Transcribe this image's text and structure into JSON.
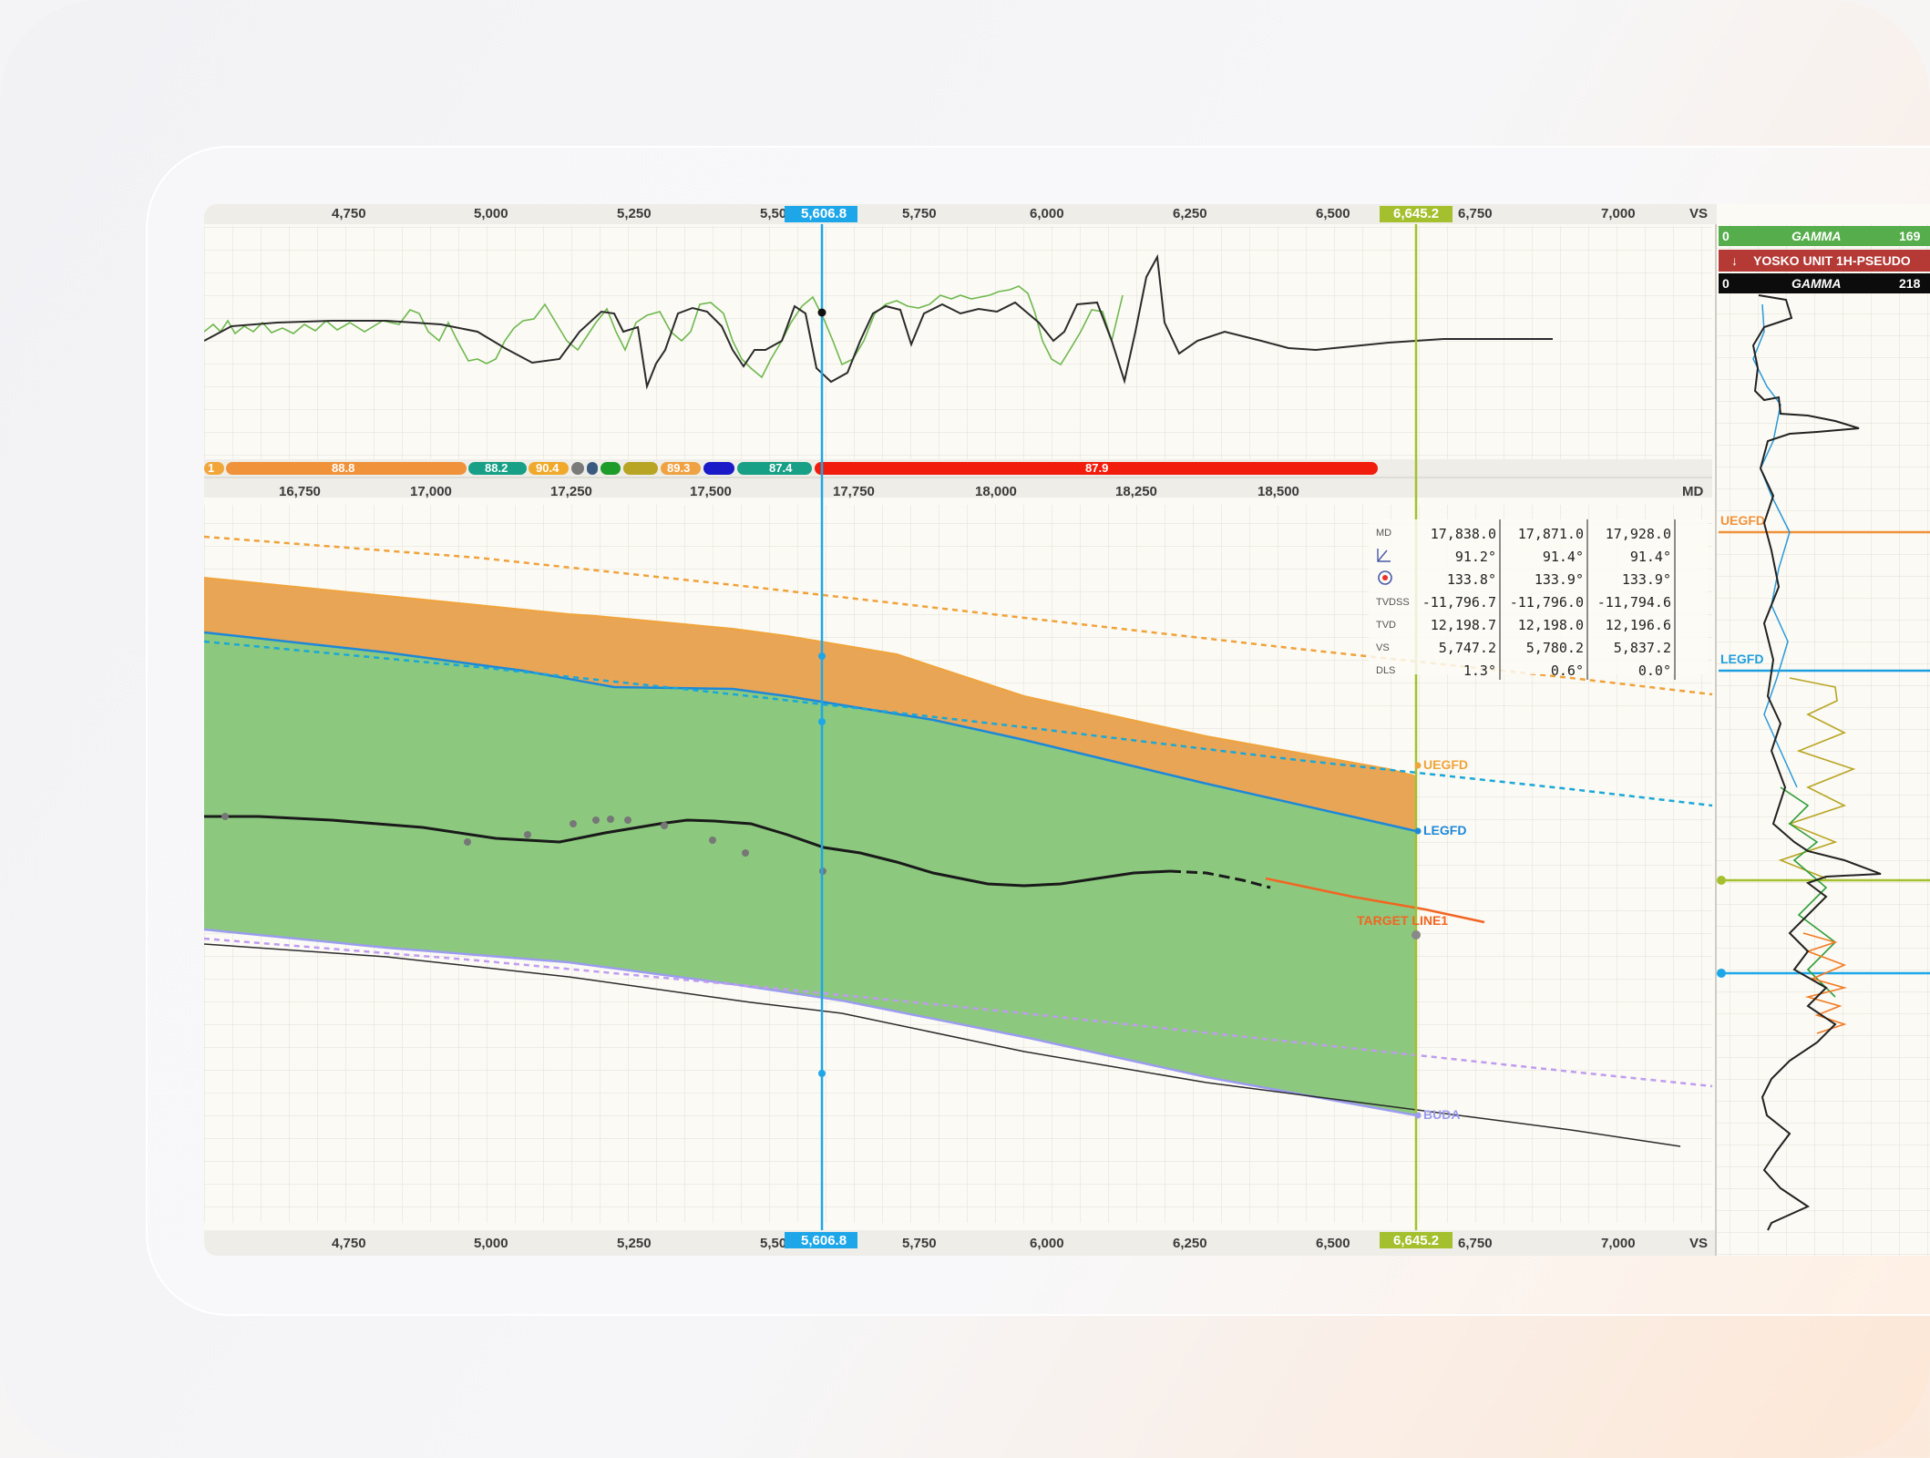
{
  "vs_axis": {
    "ticks": [
      "4,750",
      "5,000",
      "5,250",
      "5,500",
      "5,750",
      "6,000",
      "6,250",
      "6,500",
      "6,750",
      "7,000"
    ],
    "unit": "VS",
    "cursor_blue": "5,606.8",
    "cursor_green": "6,645.2"
  },
  "md_axis": {
    "ticks": [
      "16,750",
      "17,000",
      "17,250",
      "17,500",
      "17,750",
      "18,000",
      "18,250",
      "18,500"
    ],
    "unit": "MD"
  },
  "pills": [
    "1",
    "88.8",
    "88.2",
    "90.4",
    "89.3",
    "87.4",
    "87.9"
  ],
  "data_table": {
    "labels": [
      "MD",
      "",
      "",
      "TVDSS",
      "TVD",
      "VS",
      "DLS"
    ],
    "label_icons": [
      "inclination-icon",
      "azimuth-icon"
    ],
    "columns": [
      [
        "17,838.0",
        "91.2°",
        "133.8°",
        "-11,796.7",
        "12,198.7",
        "5,747.2",
        "1.3°"
      ],
      [
        "17,871.0",
        "91.4°",
        "133.9°",
        "-11,796.0",
        "12,198.0",
        "5,780.2",
        "0.6°"
      ],
      [
        "17,928.0",
        "91.4°",
        "133.9°",
        "-11,794.6",
        "12,196.6",
        "5,837.2",
        "0.0°"
      ]
    ]
  },
  "formations": {
    "uegfd": "UEGFD",
    "legfd": "LEGFD",
    "target": "TARGET LINE1",
    "buda": "BUDA"
  },
  "log_panel": {
    "gamma_top": {
      "min": "0",
      "name": "GAMMA",
      "max": "169"
    },
    "well": "YOSKO UNIT 1H-PSEUDO",
    "gamma_bottom": {
      "min": "0",
      "name": "GAMMA",
      "max": "218"
    },
    "labels": [
      "UEGFD",
      "LEGFD"
    ]
  },
  "colors": {
    "orange_zone": "#e8a556",
    "green_zone": "#8cc97e",
    "cursor_blue": "#1ea7e8",
    "cursor_green": "#a4c02e",
    "target": "#f26522"
  }
}
